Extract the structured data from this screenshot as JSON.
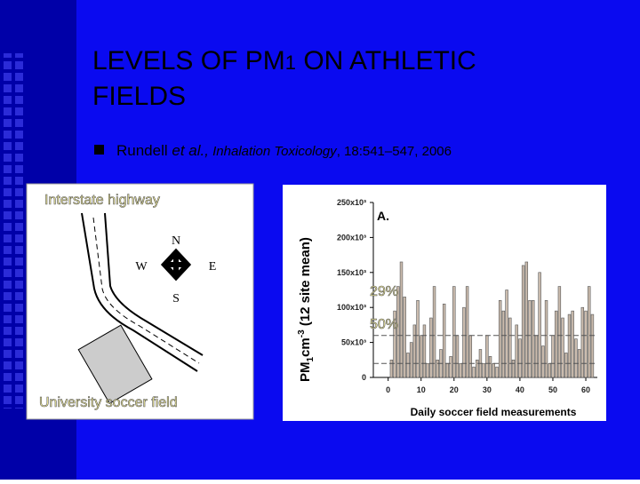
{
  "slide": {
    "title": [
      "LEVELS OF PM",
      "1",
      " ON ATHLETIC",
      "FIELDS"
    ],
    "citation": [
      "Rundell ",
      "et al.,",
      " Inhalation Toxicology",
      ", 18:541–547, 2006"
    ]
  },
  "map": {
    "highway": "Interstate highway",
    "north": "N",
    "south": "S",
    "west": "W",
    "east": "E",
    "field": "University soccer field"
  },
  "chart_data": {
    "type": "bar",
    "panel_label": "A.",
    "x_label": "Daily soccer field measurements",
    "y_label": [
      "PM",
      "1",
      "cm",
      "-3",
      " (12 site mean)"
    ],
    "x": [
      1,
      2,
      3,
      4,
      5,
      6,
      7,
      8,
      9,
      10,
      11,
      12,
      13,
      14,
      15,
      16,
      17,
      18,
      19,
      20,
      21,
      22,
      23,
      24,
      25,
      26,
      27,
      28,
      29,
      30,
      31,
      32,
      33,
      34,
      35,
      36,
      37,
      38,
      39,
      40,
      41,
      42,
      43,
      44,
      45,
      46,
      47,
      48,
      49,
      50,
      51,
      52,
      53,
      54,
      55,
      56,
      57,
      58,
      59,
      60,
      61,
      62
    ],
    "values": [
      25000,
      95000,
      130000,
      165000,
      115000,
      35000,
      50000,
      75000,
      110000,
      60000,
      75000,
      20000,
      85000,
      130000,
      25000,
      40000,
      105000,
      20000,
      30000,
      130000,
      60000,
      20000,
      100000,
      130000,
      60000,
      15000,
      25000,
      40000,
      20000,
      60000,
      30000,
      20000,
      15000,
      110000,
      95000,
      125000,
      85000,
      25000,
      75000,
      55000,
      160000,
      165000,
      110000,
      110000,
      60000,
      150000,
      45000,
      110000,
      20000,
      60000,
      95000,
      130000,
      85000,
      35000,
      90000,
      95000,
      55000,
      40000,
      100000,
      95000,
      130000,
      90000
    ],
    "color": "#cbbcae",
    "xlim": [
      -4.5,
      63.5
    ],
    "xticks": [
      0,
      10,
      20,
      30,
      40,
      50,
      60
    ],
    "ylim": [
      0,
      250000
    ],
    "yticks": [
      0,
      {
        "value": 50000,
        "label": "50x10³"
      },
      {
        "value": 100000,
        "label": "100x10³"
      },
      {
        "value": 150000,
        "label": "150x10³"
      },
      {
        "value": 200000,
        "label": "200x10³"
      },
      {
        "value": 250000,
        "label": "250x10³"
      }
    ],
    "reference_lines": [
      60000,
      20000
    ],
    "annotations": [
      "29%",
      "50%"
    ]
  }
}
